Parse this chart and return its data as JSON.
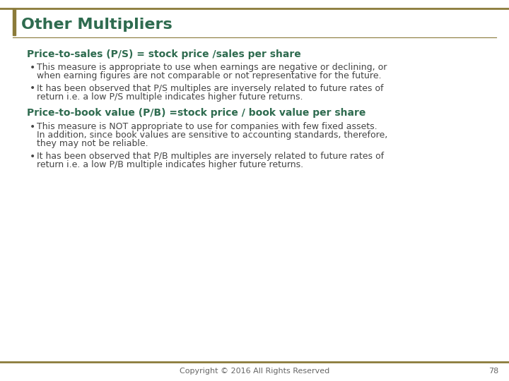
{
  "title": "Other Multipliers",
  "title_color": "#2E6B4F",
  "title_fontsize": 16,
  "background_color": "#FFFFFF",
  "border_color": "#8B7B3A",
  "left_accent_color": "#8B7B3A",
  "heading1": "Price-to-sales (P/S) = stock price /sales per share",
  "heading1_color": "#2E6B4F",
  "heading1_fontsize": 10,
  "bullet1_1_line1": "This measure is appropriate to use when earnings are negative or declining, or",
  "bullet1_1_line2": "when earning figures are not comparable or not representative for the future.",
  "bullet1_2_line1": "It has been observed that P/S multiples are inversely related to future rates of",
  "bullet1_2_line2": "return i.e. a low P/S multiple indicates higher future returns.",
  "heading2": "Price-to-book value (P/B) =stock price / book value per share",
  "heading2_color": "#2E6B4F",
  "heading2_fontsize": 10,
  "bullet2_1_line1": "This measure is NOT appropriate to use for companies with few fixed assets.",
  "bullet2_1_line2": "In addition, since book values are sensitive to accounting standards, therefore,",
  "bullet2_1_line3": "they may not be reliable.",
  "bullet2_2_line1": "It has been observed that P/B multiples are inversely related to future rates of",
  "bullet2_2_line2": "return i.e. a low P/B multiple indicates higher future returns.",
  "footer_text": "Copyright © 2016 All Rights Reserved",
  "footer_page": "78",
  "footer_color": "#666666",
  "footer_fontsize": 8,
  "body_fontsize": 9,
  "text_color": "#444444"
}
